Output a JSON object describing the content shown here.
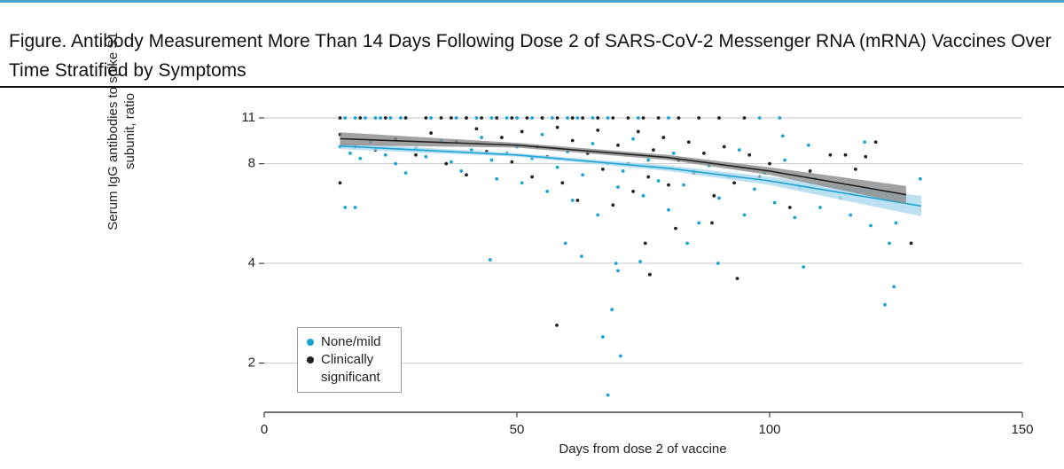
{
  "header": {
    "title": "Figure. Antibody Measurement More Than 14 Days Following Dose 2 of SARS-CoV-2 Messenger RNA (mRNA) Vaccines Over Time Stratified by Symptoms"
  },
  "chart_data": {
    "type": "scatter",
    "x_label": "Days from dose 2 of vaccine",
    "y_label": "Serum IgG antibodies to spike S1 subunit, ratio",
    "xlim": [
      0,
      150
    ],
    "xticks": [
      0,
      50,
      100,
      150
    ],
    "ylim": [
      1.42,
      11
    ],
    "yticks": [
      2,
      4,
      8,
      11
    ],
    "y_scale": "log",
    "grid": true,
    "legend": "lower-left",
    "series": [
      {
        "name": "None/mild",
        "color": "#1aa3d6",
        "x": [
          16,
          18,
          20,
          22,
          23,
          25,
          27,
          33,
          38,
          40,
          42,
          45,
          48,
          50,
          53,
          55,
          57,
          60,
          62,
          65,
          68,
          74,
          80,
          98,
          102,
          15,
          17,
          19,
          21,
          24,
          26,
          28,
          30,
          32,
          35,
          37,
          39,
          41,
          43,
          45,
          46,
          48,
          50,
          51,
          53,
          55,
          56,
          58,
          60,
          61,
          63,
          65,
          66,
          68,
          70,
          71,
          73,
          75,
          76,
          78,
          80,
          81,
          83,
          85,
          86,
          88,
          90,
          92,
          94,
          95,
          97,
          99,
          101,
          103,
          105,
          106,
          109,
          110,
          114,
          116,
          120,
          125,
          16,
          18,
          44.7,
          59.6,
          62.8,
          69.6,
          70,
          68.8,
          67,
          70.5,
          68,
          74.4,
          76.3,
          83.7,
          89.8,
          106.7,
          122.8,
          124.6,
          123.7,
          129.8,
          118.8,
          102.6,
          107.7
        ],
        "values": [
          11,
          11,
          11,
          11,
          11,
          11,
          11,
          11,
          11,
          11,
          11,
          11,
          11,
          11,
          11,
          11,
          11,
          11,
          11,
          11,
          11,
          11,
          11,
          11,
          11,
          9.0,
          8.6,
          8.3,
          9.3,
          8.5,
          8.0,
          7.5,
          8.9,
          8.4,
          9.4,
          8.1,
          7.6,
          8.8,
          9.6,
          8.2,
          7.2,
          8.6,
          9.0,
          7.0,
          8.3,
          9.8,
          6.6,
          7.8,
          8.7,
          6.2,
          7.4,
          9.2,
          5.6,
          8.0,
          6.8,
          7.6,
          9.5,
          6.4,
          8.2,
          7.1,
          5.8,
          8.6,
          6.9,
          7.6,
          5.3,
          7.9,
          6.3,
          7.3,
          8.8,
          5.6,
          6.7,
          7.5,
          6.1,
          8.2,
          5.5,
          6.8,
          7.2,
          5.9,
          6.3,
          5.6,
          5.2,
          5.3,
          5.9,
          5.9,
          4.1,
          4.6,
          4.2,
          4.0,
          3.8,
          2.9,
          2.4,
          2.1,
          1.6,
          4.05,
          3.7,
          4.6,
          4.0,
          3.9,
          3.0,
          3.4,
          4.6,
          7.2,
          9.3,
          9.7,
          9.1
        ]
      },
      {
        "name": "Clinically significant",
        "color": "#222222",
        "x": [
          15,
          19,
          24,
          28,
          32,
          35,
          37,
          40,
          43,
          46,
          49,
          52,
          55,
          58,
          61,
          63,
          66,
          69,
          72,
          75,
          78,
          82,
          86,
          90,
          95,
          15,
          15,
          18,
          22,
          26,
          30,
          33,
          36,
          38,
          40,
          42,
          44,
          47,
          49,
          51,
          53,
          54,
          56,
          58,
          59,
          61,
          62,
          64,
          66,
          67,
          69,
          70,
          72,
          73,
          74,
          76,
          77,
          79,
          80,
          82,
          84,
          85,
          87,
          89,
          91,
          93,
          96,
          98,
          100,
          104,
          108,
          112,
          115,
          117,
          119,
          121,
          57.9,
          93.6,
          76.3,
          128,
          75.4,
          88.6,
          81.4
        ],
        "values": [
          11,
          11,
          11,
          11,
          11,
          11,
          11,
          11,
          11,
          11,
          11,
          11,
          11,
          11,
          11,
          11,
          11,
          11,
          11,
          11,
          11,
          11,
          11,
          11,
          11,
          7.0,
          9.8,
          9.0,
          8.8,
          9.5,
          8.5,
          9.9,
          8.0,
          9.3,
          7.4,
          10.2,
          8.7,
          9.6,
          8.1,
          10.0,
          7.3,
          9.0,
          8.4,
          10.3,
          7.0,
          9.4,
          6.2,
          8.6,
          10.1,
          7.7,
          6.0,
          9.1,
          8.0,
          6.6,
          10.0,
          7.3,
          8.8,
          9.6,
          6.9,
          8.2,
          9.3,
          7.5,
          8.6,
          6.4,
          9.0,
          7.0,
          8.5,
          7.3,
          8.0,
          5.9,
          7.6,
          8.5,
          8.5,
          7.7,
          8.4,
          9.3,
          2.6,
          3.6,
          3.7,
          4.6,
          4.6,
          5.3,
          5.1
        ]
      }
    ],
    "fits": [
      {
        "color": "#1aa3d6",
        "band_color": "#a9d8ee",
        "x": [
          15,
          50,
          80,
          100,
          130
        ],
        "values": [
          9.05,
          8.5,
          7.75,
          7.1,
          5.96
        ],
        "ci_lower": [
          8.85,
          8.4,
          7.6,
          6.9,
          5.55
        ],
        "ci_upper": [
          9.25,
          8.6,
          7.9,
          7.3,
          6.4
        ]
      },
      {
        "color": "#222222",
        "band_color": "#8a8a8a",
        "x": [
          15,
          50,
          80,
          100,
          127
        ],
        "values": [
          9.52,
          9.1,
          8.35,
          7.6,
          6.45
        ],
        "ci_lower": [
          9.1,
          8.95,
          8.2,
          7.4,
          6.05
        ],
        "ci_upper": [
          9.95,
          9.25,
          8.5,
          7.8,
          6.85
        ]
      }
    ]
  }
}
